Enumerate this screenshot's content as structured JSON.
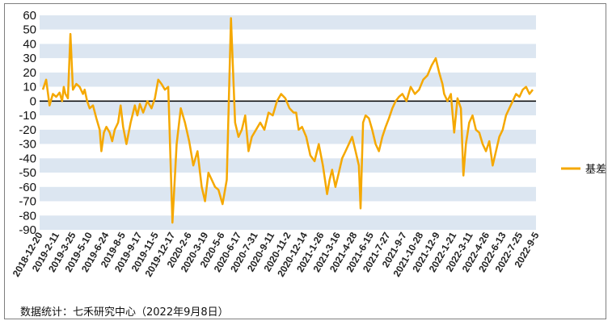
{
  "chart_data": {
    "type": "line",
    "title": "",
    "xlabel": "",
    "ylabel": "",
    "ylim": [
      -90,
      60
    ],
    "y_ticks": [
      60,
      50,
      40,
      30,
      20,
      10,
      0,
      -10,
      -20,
      -30,
      -40,
      -50,
      -60,
      -70,
      -80,
      -90
    ],
    "x_tick_labels": [
      "2018-12-20",
      "2019-2-11",
      "2019-3-25",
      "2019-5-10",
      "2019-6-24",
      "2019-8-5",
      "2019-9-17",
      "2019-11-5",
      "2019-12-17",
      "2020-2-6",
      "2020-3-19",
      "2020-5-6",
      "2020-6-17",
      "2020-7-31",
      "2020-9-11",
      "2020-11-2",
      "2020-12-14",
      "2021-1-26",
      "2021-3-16",
      "2021-4-28",
      "2021-6-15",
      "2021-7-27",
      "2021-9-7",
      "2021-10-28",
      "2021-12-9",
      "2022-1-21",
      "2022-3-11",
      "2022-4-26",
      "2022-6-13",
      "2022-7-25",
      "2022-9-5"
    ],
    "legend_position": "right",
    "grid": "alternating horizontal bands",
    "series": [
      {
        "name": "基差",
        "color": "#F5A800",
        "x": [
          0,
          0.4,
          0.8,
          1.2,
          1.6,
          2,
          2.3,
          2.5,
          2.7,
          3,
          3.3,
          3.6,
          4,
          4.4,
          4.8,
          5,
          5.3,
          5.6,
          6,
          6.4,
          6.8,
          7,
          7.3,
          7.6,
          8,
          8.3,
          8.6,
          9,
          9.3,
          9.6,
          10,
          10.5,
          11,
          11.3,
          11.6,
          12,
          12.5,
          13,
          13.4,
          13.8,
          14.2,
          14.6,
          15,
          15.5,
          16,
          16.5,
          17,
          17.5,
          18,
          18.5,
          19,
          19.4,
          19.8,
          20.2,
          20.6,
          21,
          21.5,
          22,
          22.5,
          23,
          23.4,
          23.8,
          24.2,
          24.6,
          25,
          25.5,
          26,
          26.5,
          27,
          27.5,
          28,
          28.5,
          29,
          29.5,
          30
        ],
        "y": [
          8,
          15,
          -3,
          5,
          3,
          6,
          0,
          10,
          5,
          2,
          47,
          8,
          12,
          10,
          5,
          8,
          0,
          -5,
          -3,
          -12,
          -20,
          -35,
          -22,
          -18,
          -22,
          -28,
          -20,
          -15,
          -3,
          -18,
          -30,
          -15,
          -3,
          -10,
          -2,
          -8,
          0,
          -5,
          2,
          15,
          12,
          8,
          10,
          -85,
          -30,
          -5,
          -15,
          -28,
          -45,
          -35,
          -60,
          -70,
          -50,
          -55,
          -60,
          -62,
          -72,
          -55,
          58,
          -15,
          -25,
          -20,
          -10,
          -35,
          -25,
          -20,
          -15,
          -20,
          -8,
          -10,
          0,
          5,
          2,
          -5,
          -8
        ],
        "_note": "values continue below"
      }
    ]
  },
  "source_text": "数据统计：七禾研究中心（2022年9月8日）"
}
